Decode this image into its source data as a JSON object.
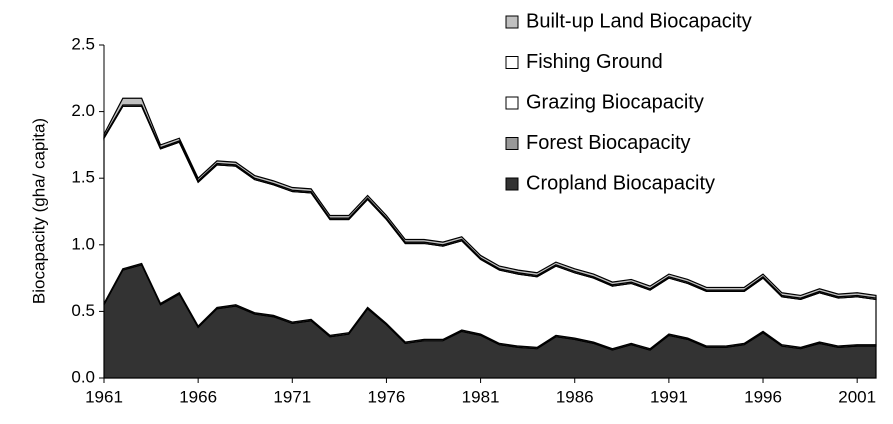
{
  "chart_data": {
    "type": "stacked_area",
    "y_label": "Biocapacity (gha/ capita)",
    "x": [
      1961,
      1962,
      1963,
      1964,
      1965,
      1966,
      1967,
      1968,
      1969,
      1970,
      1971,
      1972,
      1973,
      1974,
      1975,
      1976,
      1977,
      1978,
      1979,
      1980,
      1981,
      1982,
      1983,
      1984,
      1985,
      1986,
      1987,
      1988,
      1989,
      1990,
      1991,
      1992,
      1993,
      1994,
      1995,
      1996,
      1997,
      1998,
      1999,
      2000,
      2001,
      2002
    ],
    "series": [
      {
        "name": "Cropland Biocapacity",
        "color": "#333333",
        "values": [
          0.55,
          0.81,
          0.85,
          0.55,
          0.63,
          0.38,
          0.52,
          0.54,
          0.48,
          0.46,
          0.41,
          0.43,
          0.31,
          0.33,
          0.52,
          0.4,
          0.26,
          0.28,
          0.28,
          0.35,
          0.32,
          0.25,
          0.23,
          0.22,
          0.31,
          0.29,
          0.26,
          0.21,
          0.25,
          0.21,
          0.32,
          0.29,
          0.23,
          0.23,
          0.25,
          0.34,
          0.24,
          0.22,
          0.26,
          0.23,
          0.24,
          0.24
        ]
      },
      {
        "name": "Forest Biocapacity",
        "color": "#999999",
        "values": [
          0.01,
          0.01,
          0.01,
          0.01,
          0.01,
          0.01,
          0.01,
          0.01,
          0.01,
          0.01,
          0.01,
          0.01,
          0.01,
          0.01,
          0.01,
          0.01,
          0.01,
          0.01,
          0.01,
          0.01,
          0.01,
          0.01,
          0.01,
          0.01,
          0.01,
          0.01,
          0.01,
          0.01,
          0.01,
          0.01,
          0.01,
          0.01,
          0.01,
          0.01,
          0.01,
          0.01,
          0.01,
          0.01,
          0.01,
          0.01,
          0.01,
          0.01
        ]
      },
      {
        "name": "Grazing Biocapacity",
        "color": "#ffffff",
        "values": [
          1.24,
          1.22,
          1.18,
          1.16,
          1.13,
          1.08,
          1.07,
          1.04,
          1.0,
          0.98,
          0.98,
          0.95,
          0.87,
          0.85,
          0.81,
          0.78,
          0.74,
          0.72,
          0.7,
          0.67,
          0.56,
          0.55,
          0.54,
          0.53,
          0.52,
          0.49,
          0.48,
          0.47,
          0.45,
          0.44,
          0.42,
          0.41,
          0.41,
          0.41,
          0.39,
          0.4,
          0.36,
          0.36,
          0.37,
          0.36,
          0.36,
          0.34
        ]
      },
      {
        "name": "Fishing Ground",
        "color": "#ffffff",
        "values": [
          0.01,
          0.01,
          0.01,
          0.01,
          0.01,
          0.01,
          0.01,
          0.01,
          0.01,
          0.01,
          0.01,
          0.01,
          0.01,
          0.01,
          0.01,
          0.01,
          0.01,
          0.01,
          0.01,
          0.01,
          0.01,
          0.01,
          0.01,
          0.01,
          0.01,
          0.01,
          0.01,
          0.01,
          0.01,
          0.01,
          0.01,
          0.01,
          0.01,
          0.01,
          0.01,
          0.01,
          0.01,
          0.01,
          0.01,
          0.01,
          0.01,
          0.01
        ]
      },
      {
        "name": "Built-up Land Biocapacity",
        "color": "#c0c0c0",
        "values": [
          0.02,
          0.05,
          0.05,
          0.02,
          0.02,
          0.02,
          0.02,
          0.02,
          0.02,
          0.02,
          0.02,
          0.02,
          0.02,
          0.02,
          0.02,
          0.02,
          0.02,
          0.02,
          0.02,
          0.02,
          0.02,
          0.02,
          0.02,
          0.02,
          0.02,
          0.02,
          0.02,
          0.02,
          0.02,
          0.02,
          0.02,
          0.02,
          0.02,
          0.02,
          0.02,
          0.02,
          0.02,
          0.02,
          0.02,
          0.02,
          0.02,
          0.02
        ]
      }
    ],
    "xlim": [
      1961,
      2002
    ],
    "xticks": [
      1961,
      1966,
      1971,
      1976,
      1981,
      1986,
      1991,
      1996,
      2001
    ],
    "ylim": [
      0,
      2.5
    ],
    "yticks": [
      {
        "value": 0,
        "label": "0.0"
      },
      {
        "value": 0.5,
        "label": "0.5"
      },
      {
        "value": 1,
        "label": "1.0"
      },
      {
        "value": 1.5,
        "label": "1.5"
      },
      {
        "value": 2,
        "label": "2.0"
      },
      {
        "value": 2.5,
        "label": "2.5"
      }
    ],
    "legend": "top-right"
  }
}
